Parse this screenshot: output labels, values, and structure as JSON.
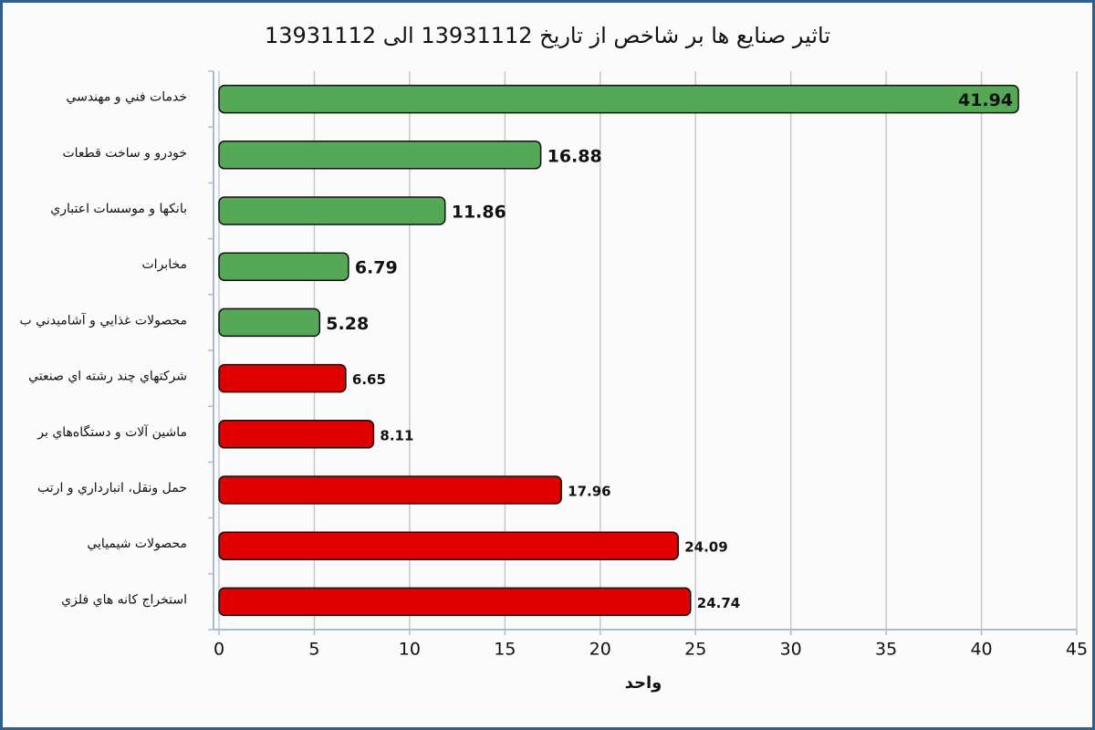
{
  "chart_data": {
    "type": "bar",
    "orientation": "horizontal",
    "title": "تاثیر صنایع ها بر شاخص از تاریخ 13931112 الی 13931112",
    "x_label": "واحد",
    "categories": [
      "خدمات فني و مهندسي",
      "خودرو و ساخت قطعات",
      "بانكها و موسسات اعتباري",
      "مخابرات",
      "محصولات غذايي و آشاميدني ب",
      "شركتهاي چند رشته اي صنعتي",
      "ماشين آلات و دستگاه‌هاي بر",
      "حمل ونقل، انبارداري و ارتب",
      "محصولات شيميايي",
      "استخراج كانه هاي فلزي"
    ],
    "values": [
      41.94,
      16.88,
      11.86,
      6.79,
      5.28,
      6.65,
      8.11,
      17.96,
      24.09,
      24.74
    ],
    "colors": [
      "#55a855",
      "#55a855",
      "#55a855",
      "#55a855",
      "#55a855",
      "#e00000",
      "#e00000",
      "#e00000",
      "#e00000",
      "#e00000"
    ],
    "xlim": [
      0,
      45
    ],
    "xticks": [
      0,
      5,
      10,
      15,
      20,
      25,
      30,
      35,
      40,
      45
    ],
    "grid": true
  }
}
